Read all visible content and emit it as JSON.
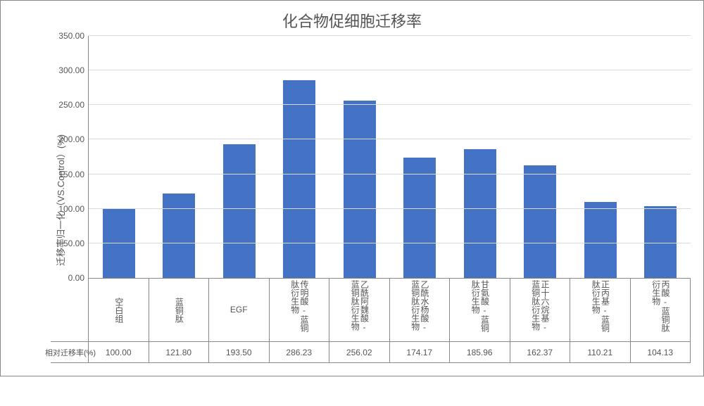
{
  "chart": {
    "type": "bar",
    "title": "化合物促细胞迁移率",
    "title_fontsize": 22,
    "ylabel": "迁移率归一化（VS.Control）(%)",
    "ylabel_fontsize": 13,
    "ylim": [
      0,
      350
    ],
    "ytick_step": 50,
    "yticks": [
      0,
      50,
      100,
      150,
      200,
      250,
      300,
      350
    ],
    "ytick_labels": [
      "0.00",
      "50.00",
      "100.00",
      "150.00",
      "200.00",
      "250.00",
      "300.00",
      "350.00"
    ],
    "grid_color": "#d9d9d9",
    "axis_color": "#888888",
    "background_color": "#ffffff",
    "bar_color": "#4472c4",
    "bar_width": 0.54,
    "series_name": "相对迁移率(%)",
    "legend_marker_color": "#4472c4",
    "categories": [
      "空白组",
      "蓝铜肽",
      "EGF",
      "传明酸-蓝铜肽衍生物",
      "乙酰阿魏酸-蓝铜肽衍生物",
      "乙酰水杨酸-蓝铜肽衍生物",
      "甘氨酸-蓝铜肽衍生物",
      "正十六烷基-蓝铜肽衍生物",
      "正丙基-蓝铜肽衍生物",
      "丙酸-蓝铜肽衍生物"
    ],
    "values": [
      100.0,
      121.8,
      193.5,
      286.23,
      256.02,
      174.17,
      185.96,
      162.37,
      110.21,
      104.13
    ],
    "value_labels": [
      "100.00",
      "121.80",
      "193.50",
      "286.23",
      "256.02",
      "174.17",
      "185.96",
      "162.37",
      "110.21",
      "104.13"
    ],
    "tick_fontsize": 12,
    "text_color": "#555555"
  }
}
